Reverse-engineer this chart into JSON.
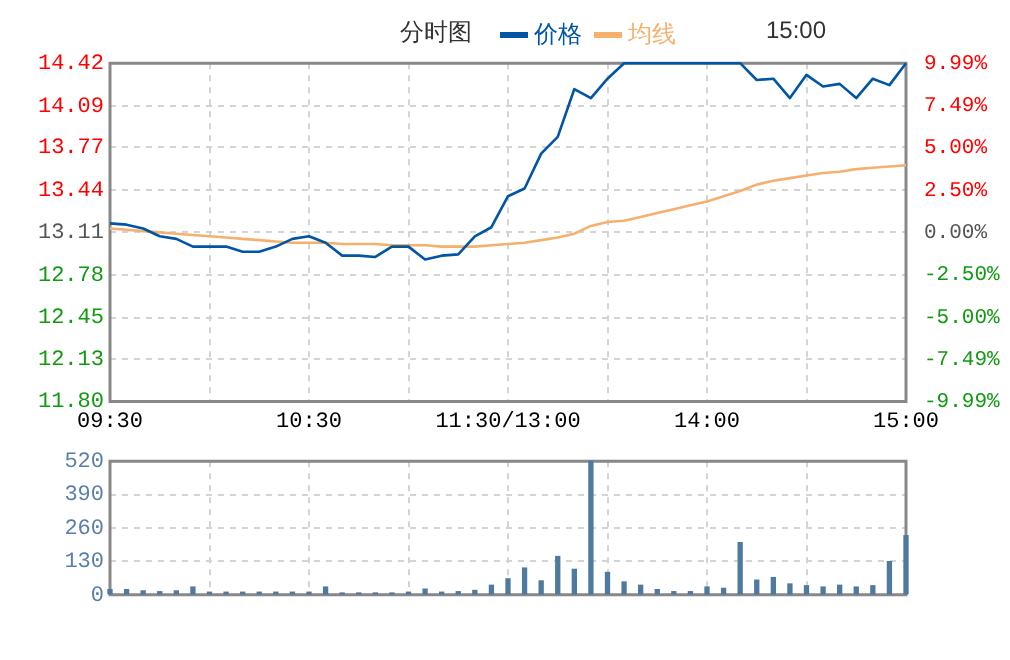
{
  "chart_data": [
    {
      "type": "line",
      "title": "分时图",
      "legend": "top",
      "grid": true,
      "marker": "none",
      "line_style": "solid",
      "annotations": [
        "15:00"
      ],
      "categories": [
        "09:30",
        null,
        null,
        null,
        null,
        null,
        null,
        null,
        null,
        null,
        null,
        null,
        "10:30",
        null,
        null,
        null,
        null,
        null,
        null,
        null,
        null,
        null,
        null,
        null,
        "11:30/13:00",
        null,
        null,
        null,
        null,
        null,
        null,
        null,
        null,
        null,
        null,
        null,
        "14:00",
        null,
        null,
        null,
        null,
        null,
        null,
        null,
        null,
        null,
        null,
        null,
        "15:00"
      ],
      "ylim": [
        11.8,
        14.42
      ],
      "yticks": [
        {
          "value": 11.8,
          "label": "11.80"
        },
        12.13,
        12.45,
        12.78,
        13.11,
        13.44,
        13.77,
        14.09,
        14.42
      ],
      "y2lim": [
        -9.99,
        9.99
      ],
      "y2ticks": [
        {
          "value": -9.99,
          "label": "-9.99%"
        },
        {
          "value": -7.49,
          "label": "-7.49%"
        },
        {
          "value": -5,
          "label": "-5.00%"
        },
        {
          "value": -2.5,
          "label": "-2.50%"
        },
        {
          "value": 0,
          "label": "0.00%"
        },
        {
          "value": 2.5,
          "label": "2.50%"
        },
        {
          "value": 5,
          "label": "5.00%"
        },
        {
          "value": 7.49,
          "label": "7.49%"
        },
        {
          "value": 9.99,
          "label": "9.99%"
        }
      ],
      "series": [
        {
          "name": "价格",
          "color": "#0055a5",
          "values": [
            13.18,
            13.17,
            13.14,
            13.08,
            13.06,
            13.0,
            13.0,
            13.0,
            12.96,
            12.96,
            13.0,
            13.06,
            13.08,
            13.03,
            12.93,
            12.93,
            12.92,
            13.0,
            13.0,
            12.9,
            12.93,
            12.94,
            13.08,
            13.15,
            13.39,
            13.45,
            13.72,
            13.85,
            14.22,
            14.15,
            14.3,
            14.42,
            14.42,
            14.42,
            14.42,
            14.42,
            14.42,
            14.42,
            14.42,
            14.29,
            14.3,
            14.15,
            14.33,
            14.24,
            14.26,
            14.15,
            14.3,
            14.25,
            14.42
          ]
        },
        {
          "name": "均线",
          "color": "#f5b06e",
          "values": [
            13.14,
            13.13,
            13.12,
            13.11,
            13.1,
            13.09,
            13.08,
            13.07,
            13.06,
            13.05,
            13.04,
            13.03,
            13.03,
            13.03,
            13.02,
            13.02,
            13.02,
            13.01,
            13.01,
            13.01,
            13.0,
            13.0,
            13.0,
            13.01,
            13.02,
            13.03,
            13.05,
            13.07,
            13.1,
            13.16,
            13.19,
            13.2,
            13.23,
            13.26,
            13.29,
            13.32,
            13.35,
            13.39,
            13.43,
            13.48,
            13.51,
            13.53,
            13.55,
            13.57,
            13.58,
            13.6,
            13.61,
            13.62,
            13.63
          ]
        }
      ]
    },
    {
      "type": "bar",
      "grid": true,
      "tick_labels": "y",
      "categories": [
        null,
        null,
        null,
        null,
        null,
        null,
        null,
        null,
        null,
        null,
        null,
        null,
        null,
        null,
        null,
        null,
        null,
        null,
        null,
        null,
        null,
        null,
        null,
        null,
        null,
        null,
        null,
        null,
        null,
        null,
        null,
        null,
        null,
        null,
        null,
        null,
        null,
        null,
        null,
        null,
        null,
        null,
        null,
        null,
        null,
        null,
        null,
        null,
        null
      ],
      "ylim": [
        0,
        520
      ],
      "yticks": [
        0,
        130,
        260,
        390,
        520
      ],
      "series": [
        {
          "color": "#4f7aa0",
          "values": [
            20,
            20,
            15,
            12,
            15,
            30,
            10,
            10,
            10,
            10,
            10,
            10,
            10,
            30,
            7,
            7,
            7,
            7,
            10,
            22,
            10,
            12,
            17,
            37,
            62,
            104,
            54,
            149,
            99,
            520,
            87,
            50,
            37,
            20,
            12,
            12,
            30,
            25,
            203,
            57,
            67,
            42,
            35,
            30,
            37,
            30,
            35,
            129,
            230
          ]
        }
      ]
    }
  ]
}
